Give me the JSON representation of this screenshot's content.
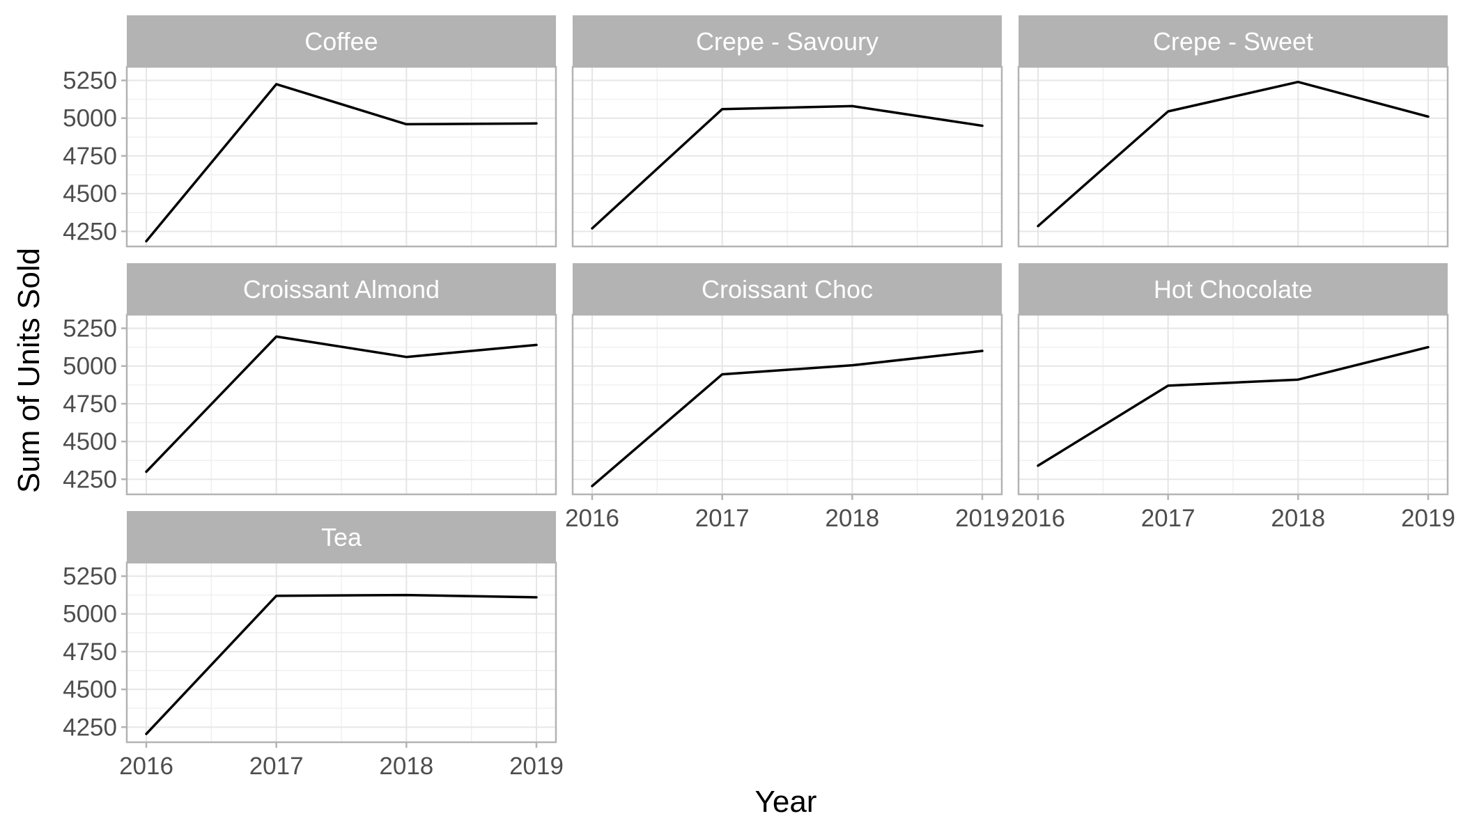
{
  "chart_data": {
    "type": "line",
    "xlabel": "Year",
    "ylabel": "Sum of Units Sold",
    "x": [
      2016,
      2017,
      2018,
      2019
    ],
    "x_tick_labels": [
      "2016",
      "2017",
      "2018",
      "2019"
    ],
    "y_ticks": [
      4250,
      4500,
      4750,
      5000,
      5250
    ],
    "y_tick_labels": [
      "4250",
      "4500",
      "4750",
      "5000",
      "5250"
    ],
    "ylim": [
      4150,
      5340
    ],
    "xlim": [
      2015.85,
      2019.15
    ],
    "grid": true,
    "line_color": "#000000",
    "strip_color": "#b3b3b3",
    "facets": [
      {
        "title": "Coffee",
        "values": [
          4185,
          5225,
          4960,
          4965
        ]
      },
      {
        "title": "Crepe - Savoury",
        "values": [
          4270,
          5060,
          5080,
          4950
        ]
      },
      {
        "title": "Crepe - Sweet",
        "values": [
          4285,
          5045,
          5240,
          5010
        ]
      },
      {
        "title": "Croissant Almond",
        "values": [
          4300,
          5195,
          5060,
          5140
        ]
      },
      {
        "title": "Croissant Choc",
        "values": [
          4205,
          4945,
          5005,
          5100
        ]
      },
      {
        "title": "Hot Chocolate",
        "values": [
          4340,
          4870,
          4910,
          5125
        ]
      },
      {
        "title": "Tea",
        "values": [
          4205,
          5120,
          5125,
          5110
        ]
      }
    ]
  }
}
